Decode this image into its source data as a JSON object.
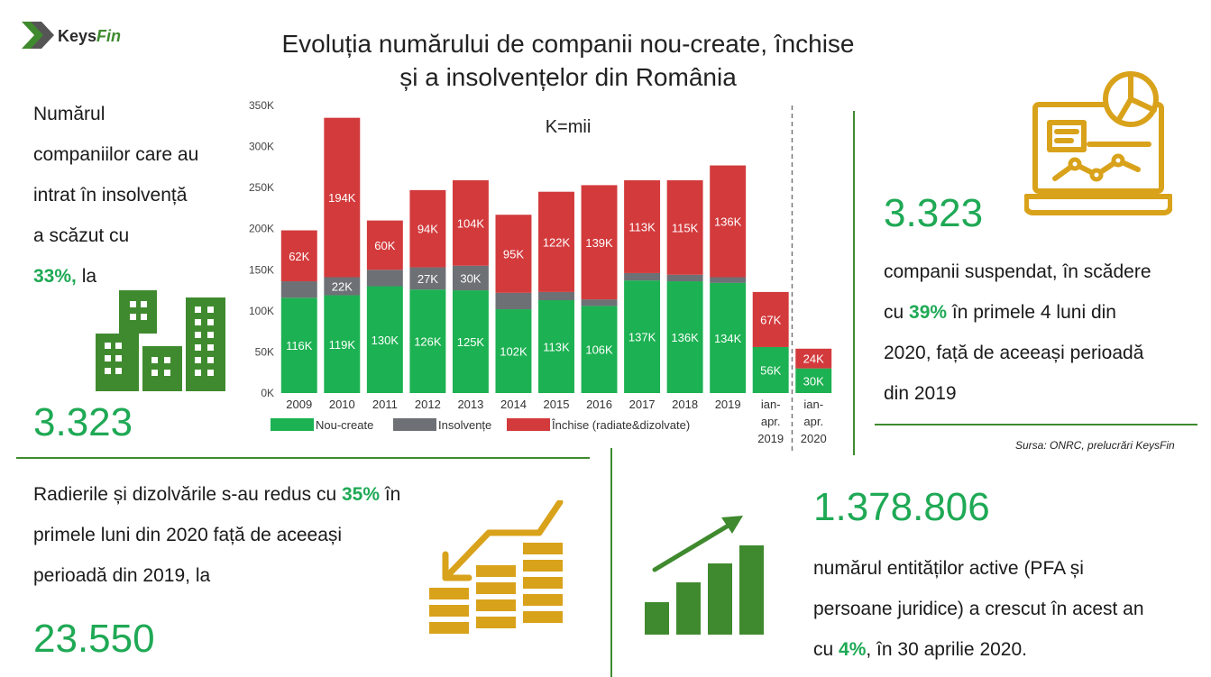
{
  "logo": {
    "part1": "Keys",
    "part2": "Fin"
  },
  "title_line1": "Evoluția numărului de companii nou-create, închise",
  "title_line2": "și a insolvențelor din România",
  "left_top": {
    "line1": "Numărul",
    "line2": "companiilor care au",
    "line3": "intrat în insolvență",
    "line4": "a scăzut cu",
    "pct": "33%,",
    "after": " la",
    "value": "3.323"
  },
  "right_top": {
    "value": "3.323",
    "line1": "companii suspendat, în scădere",
    "line2_pre": "cu ",
    "pct": "39%",
    "line2_post": " în primele 4 luni din",
    "line3": "2020, față de aceeași perioadă",
    "line4": "din 2019"
  },
  "source": "Sursa: ONRC, prelucrări KeysFin",
  "bottom_left": {
    "line1_pre": "Radierile și dizolvările s-au redus cu ",
    "pct": "35%",
    "line1_post": " în",
    "line2": "primele luni din 2020 față de aceeași",
    "line3": "perioadă din 2019, la",
    "value": "23.550"
  },
  "bottom_right": {
    "value": "1.378.806",
    "line1": "numărul entităților active (PFA și",
    "line2": "persoane juridice) a crescut în acest an",
    "line3_pre": "cu ",
    "pct": "4%",
    "line3_post": ", în 30 aprilie 2020."
  },
  "colors": {
    "accent": "#1fa955",
    "dark_green": "#3f8a2e",
    "gold": "#d9a21b"
  },
  "icons": [
    "keysfin-logo-icon",
    "buildings-icon",
    "laptop-analytics-icon",
    "coins-down-icon",
    "bar-growth-icon"
  ],
  "chart_data": {
    "type": "bar",
    "stacked": true,
    "annotation": "K=mii",
    "categories": [
      "2009",
      "2010",
      "2011",
      "2012",
      "2013",
      "2014",
      "2015",
      "2016",
      "2017",
      "2018",
      "2019",
      "ian-apr. 2019",
      "ian-apr. 2020"
    ],
    "series": [
      {
        "name": "Nou-create",
        "color": "#1cb152",
        "values": [
          116,
          119,
          130,
          126,
          125,
          102,
          113,
          106,
          137,
          136,
          134,
          56,
          30
        ],
        "labels": [
          "116K",
          "119K",
          "130K",
          "126K",
          "125K",
          "102K",
          "113K",
          "106K",
          "137K",
          "136K",
          "134K",
          "56K",
          "30K"
        ]
      },
      {
        "name": "Insolvențe",
        "color": "#6d7075",
        "values": [
          20,
          22,
          20,
          27,
          30,
          20,
          10,
          8,
          9,
          8,
          7,
          0,
          0
        ],
        "labels": [
          "",
          "22K",
          "",
          "27K",
          "30K",
          "",
          "",
          "",
          "",
          "",
          "",
          "",
          ""
        ]
      },
      {
        "name": "Închise (radiate&dizolvate)",
        "color": "#d33a3c",
        "values": [
          62,
          194,
          60,
          94,
          104,
          95,
          122,
          139,
          113,
          115,
          136,
          67,
          24
        ],
        "labels": [
          "62K",
          "194K",
          "60K",
          "94K",
          "104K",
          "95K",
          "122K",
          "139K",
          "113K",
          "115K",
          "136K",
          "67K",
          "24K"
        ]
      }
    ],
    "yticks": [
      0,
      50,
      100,
      150,
      200,
      250,
      300,
      350
    ],
    "ytick_labels": [
      "0K",
      "50K",
      "100K",
      "150K",
      "200K",
      "250K",
      "300K",
      "350K"
    ],
    "ylim": [
      0,
      350
    ],
    "legend_position": "bottom-left",
    "grid": false
  }
}
